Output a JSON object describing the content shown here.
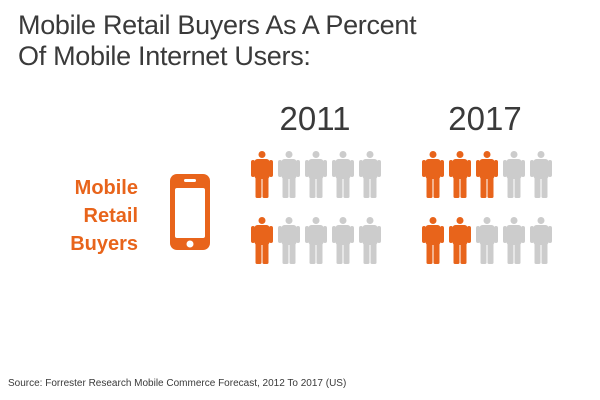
{
  "title": "Mobile Retail Buyers As A Percent Of Mobile Internet Users:",
  "label_lines": [
    "Mobile",
    "Retail",
    "Buyers"
  ],
  "source": "Source: Forrester Research Mobile Commerce Forecast, 2012 To 2017 (US)",
  "colors": {
    "highlight": "#e8641b",
    "base": "#cccccc",
    "text": "#3a3a3a"
  },
  "icons": {
    "label": "phone-icon",
    "unit": "person-icon"
  },
  "chart_data": {
    "type": "pictogram",
    "categories": [
      "2011",
      "2017"
    ],
    "rows_per_group": 2,
    "icons_per_row": 5,
    "highlighted_per_row": [
      [
        1,
        1
      ],
      [
        3,
        2
      ]
    ]
  }
}
